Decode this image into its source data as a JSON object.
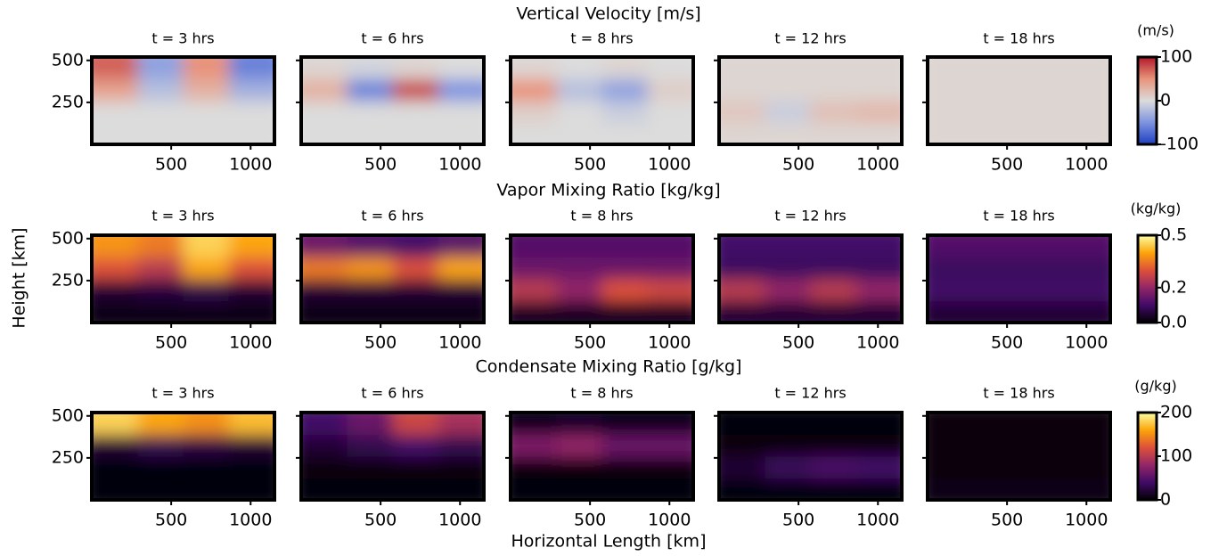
{
  "chart_data": [
    {
      "type": "heatmap",
      "title": "Vertical Velocity [m/s]",
      "colorbar_label": "(m/s)",
      "colormap": "coolwarm",
      "clim": [
        -100,
        100
      ],
      "cticks": [
        -100,
        0,
        100
      ],
      "xlim": [
        0,
        1150
      ],
      "xticks": [
        500,
        1000
      ],
      "ylim": [
        0,
        520
      ],
      "yticks": [
        250,
        500
      ],
      "x_edges": [
        0,
        287.5,
        575,
        862.5,
        1150
      ],
      "y_edges": [
        0,
        130,
        260,
        390,
        520
      ],
      "panels": [
        {
          "title": "t = 3 hrs",
          "values": [
            [
              0,
              0,
              0,
              0
            ],
            [
              0,
              0,
              0,
              0
            ],
            [
              40,
              -20,
              30,
              -30
            ],
            [
              70,
              -40,
              50,
              -60
            ]
          ]
        },
        {
          "title": "t = 6 hrs",
          "values": [
            [
              0,
              0,
              0,
              0
            ],
            [
              0,
              0,
              0,
              0
            ],
            [
              30,
              -60,
              80,
              -50
            ],
            [
              5,
              -5,
              5,
              0
            ]
          ]
        },
        {
          "title": "t = 8 hrs",
          "values": [
            [
              0,
              0,
              0,
              0
            ],
            [
              10,
              0,
              -10,
              0
            ],
            [
              50,
              -20,
              -40,
              10
            ],
            [
              5,
              0,
              5,
              0
            ]
          ]
        },
        {
          "title": "t = 12 hrs",
          "values": [
            [
              5,
              5,
              5,
              5
            ],
            [
              15,
              -10,
              20,
              25
            ],
            [
              5,
              5,
              5,
              5
            ],
            [
              5,
              5,
              5,
              5
            ]
          ]
        },
        {
          "title": "t = 18 hrs",
          "values": [
            [
              5,
              5,
              5,
              5
            ],
            [
              5,
              5,
              5,
              5
            ],
            [
              5,
              5,
              5,
              5
            ],
            [
              5,
              5,
              5,
              5
            ]
          ]
        }
      ]
    },
    {
      "type": "heatmap",
      "title": "Vapor Mixing Ratio [kg/kg]",
      "colorbar_label": "(kg/kg)",
      "colormap": "inferno",
      "clim": [
        0,
        0.5
      ],
      "cticks": [
        {
          "value": 0,
          "label": "0.0"
        },
        0.2,
        0.5
      ],
      "xlim": [
        0,
        1150
      ],
      "xticks": [
        500,
        1000
      ],
      "ylim": [
        0,
        520
      ],
      "yticks": [
        250,
        500
      ],
      "x_edges": [
        0,
        287.5,
        575,
        862.5,
        1150
      ],
      "y_edges": [
        0,
        130,
        260,
        390,
        520
      ],
      "ylabel": "Height [km]",
      "panels": [
        {
          "title": "t = 3 hrs",
          "values": [
            [
              0.02,
              0.02,
              0.02,
              0.02
            ],
            [
              0.05,
              0.06,
              0.07,
              0.05
            ],
            [
              0.3,
              0.25,
              0.4,
              0.3
            ],
            [
              0.38,
              0.35,
              0.45,
              0.4
            ]
          ]
        },
        {
          "title": "t = 6 hrs",
          "values": [
            [
              0.02,
              0.02,
              0.02,
              0.02
            ],
            [
              0.05,
              0.05,
              0.05,
              0.05
            ],
            [
              0.35,
              0.38,
              0.3,
              0.4
            ],
            [
              0.15,
              0.12,
              0.1,
              0.13
            ]
          ]
        },
        {
          "title": "t = 8 hrs",
          "values": [
            [
              0.03,
              0.03,
              0.03,
              0.03
            ],
            [
              0.25,
              0.2,
              0.3,
              0.28
            ],
            [
              0.15,
              0.15,
              0.15,
              0.15
            ],
            [
              0.12,
              0.12,
              0.12,
              0.12
            ]
          ]
        },
        {
          "title": "t = 12 hrs",
          "values": [
            [
              0.05,
              0.05,
              0.05,
              0.05
            ],
            [
              0.25,
              0.2,
              0.25,
              0.2
            ],
            [
              0.09,
              0.09,
              0.09,
              0.09
            ],
            [
              0.1,
              0.1,
              0.1,
              0.1
            ]
          ]
        },
        {
          "title": "t = 18 hrs",
          "values": [
            [
              0.05,
              0.05,
              0.05,
              0.05
            ],
            [
              0.1,
              0.1,
              0.1,
              0.1
            ],
            [
              0.09,
              0.09,
              0.09,
              0.09
            ],
            [
              0.12,
              0.12,
              0.12,
              0.12
            ]
          ]
        }
      ]
    },
    {
      "type": "heatmap",
      "title": "Condensate Mixing Ratio [g/kg]",
      "colorbar_label": "(g/kg)",
      "colormap": "inferno",
      "clim": [
        0,
        200
      ],
      "cticks": [
        0,
        100,
        200
      ],
      "xlim": [
        0,
        1150
      ],
      "xticks": [
        500,
        1000
      ],
      "ylim": [
        0,
        520
      ],
      "yticks": [
        250,
        500
      ],
      "x_edges": [
        0,
        287.5,
        575,
        862.5,
        1150
      ],
      "y_edges": [
        0,
        130,
        260,
        390,
        520
      ],
      "xlabel": "Horizontal Length [km]",
      "panels": [
        {
          "title": "t = 3 hrs",
          "values": [
            [
              2,
              2,
              2,
              2
            ],
            [
              2,
              2,
              2,
              2
            ],
            [
              20,
              30,
              25,
              20
            ],
            [
              180,
              160,
              150,
              170
            ]
          ]
        },
        {
          "title": "t = 6 hrs",
          "values": [
            [
              2,
              2,
              2,
              2
            ],
            [
              5,
              5,
              5,
              5
            ],
            [
              20,
              30,
              40,
              30
            ],
            [
              40,
              60,
              110,
              90
            ]
          ]
        },
        {
          "title": "t = 8 hrs",
          "values": [
            [
              3,
              3,
              3,
              3
            ],
            [
              5,
              5,
              5,
              5
            ],
            [
              70,
              80,
              60,
              60
            ],
            [
              10,
              15,
              10,
              10
            ]
          ]
        },
        {
          "title": "t = 12 hrs",
          "values": [
            [
              3,
              3,
              3,
              3
            ],
            [
              20,
              35,
              45,
              40
            ],
            [
              5,
              5,
              5,
              5
            ],
            [
              3,
              3,
              3,
              3
            ]
          ]
        },
        {
          "title": "t = 18 hrs",
          "values": [
            [
              8,
              8,
              8,
              8
            ],
            [
              4,
              4,
              4,
              4
            ],
            [
              4,
              4,
              4,
              4
            ],
            [
              4,
              4,
              4,
              4
            ]
          ]
        }
      ]
    }
  ]
}
